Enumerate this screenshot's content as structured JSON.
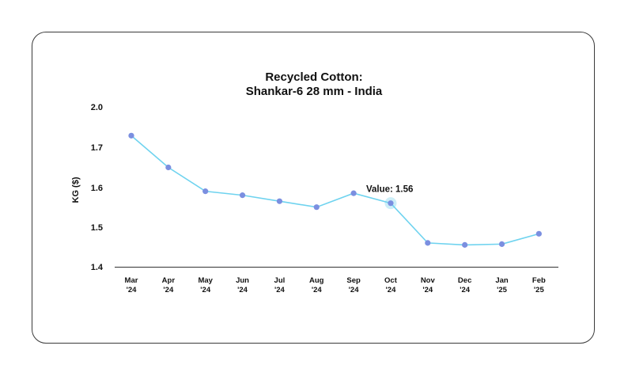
{
  "chart_data": {
    "type": "line",
    "title": [
      "Recycled Cotton:",
      "Shankar-6 28 mm - India"
    ],
    "ylabel": "KG ($)",
    "xlabel": "",
    "y_ticks": [
      "1.4",
      "1.5",
      "1.6",
      "1.7",
      "2.0"
    ],
    "categories": [
      [
        "Mar",
        "'24"
      ],
      [
        "Apr",
        "'24"
      ],
      [
        "May",
        "'24"
      ],
      [
        "Jun",
        "'24"
      ],
      [
        "Jul",
        "'24"
      ],
      [
        "Aug",
        "'24"
      ],
      [
        "Sep",
        "'24"
      ],
      [
        "Oct",
        "'24"
      ],
      [
        "Nov",
        "'24"
      ],
      [
        "Dec",
        "'24"
      ],
      [
        "Jan",
        "'25"
      ],
      [
        "Feb",
        "'25"
      ]
    ],
    "series": [
      {
        "values": [
          1.73,
          1.65,
          1.59,
          1.58,
          1.565,
          1.55,
          1.585,
          1.56,
          1.46,
          1.455,
          1.457,
          1.483
        ]
      }
    ],
    "tooltip": {
      "index": 7,
      "text": "Value: 1.56"
    },
    "grid": false,
    "colors": {
      "line": "#6fd3ef",
      "marker": "#7b8fe0",
      "highlight": "#cdeef8",
      "axis": "#333333"
    }
  }
}
